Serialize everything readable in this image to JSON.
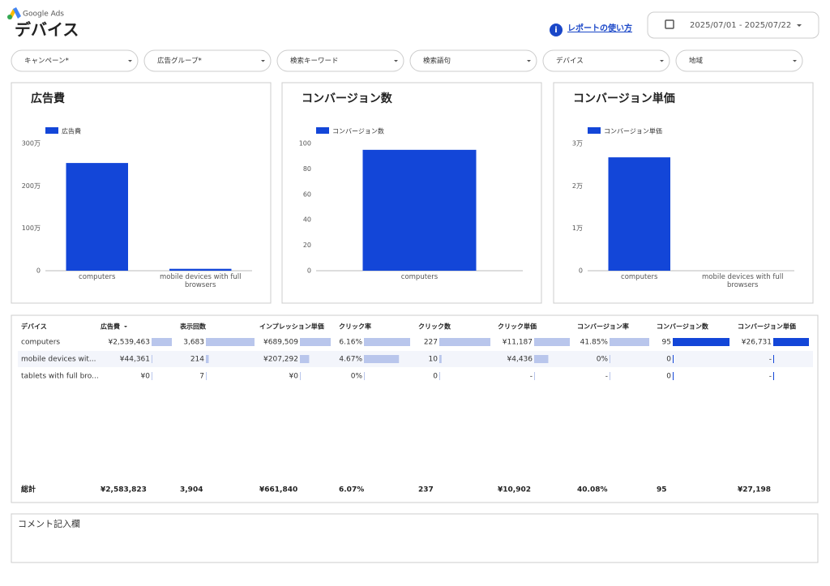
{
  "header": {
    "brand": "Google Ads",
    "title": "デバイス",
    "help_link": "レポートの使い方",
    "date_range": "2025/07/01 - 2025/07/22"
  },
  "filters": [
    "キャンペーン*",
    "広告グループ*",
    "検索キーワード",
    "検索語句",
    "デバイス",
    "地域"
  ],
  "chart_data": [
    {
      "type": "bar",
      "title": "広告費",
      "categories": [
        "computers",
        "mobile devices with full browsers"
      ],
      "series": [
        {
          "name": "広告費",
          "color": "#1346d8",
          "values": [
            2539463,
            44361
          ]
        }
      ],
      "ylim": [
        0,
        3000000
      ],
      "yticks": [
        0,
        {
          "value": 1000000,
          "label": "100万"
        },
        {
          "value": 2000000,
          "label": "200万"
        },
        {
          "value": 3000000,
          "label": "300万"
        }
      ],
      "grid": false
    },
    {
      "type": "bar",
      "title": "コンバージョン数",
      "categories": [
        "computers"
      ],
      "series": [
        {
          "name": "コンバージョン数",
          "color": "#1346d8",
          "values": [
            95
          ]
        }
      ],
      "ylim": [
        0,
        100
      ],
      "yticks": [
        0,
        20,
        40,
        60,
        80,
        100
      ],
      "grid": false
    },
    {
      "type": "bar",
      "title": "コンバージョン単価",
      "categories": [
        "computers",
        "mobile devices with full browsers"
      ],
      "series": [
        {
          "name": "コンバージョン単価",
          "color": "#1346d8",
          "values": [
            26731,
            null
          ]
        }
      ],
      "ylim": [
        0,
        30000
      ],
      "yticks": [
        0,
        {
          "value": 10000,
          "label": "1万"
        },
        {
          "value": 20000,
          "label": "2万"
        },
        {
          "value": 30000,
          "label": "3万"
        }
      ],
      "grid": false
    }
  ],
  "table": {
    "columns": [
      "デバイス",
      "広告費",
      "表示回数",
      "インプレッション単価",
      "クリック率",
      "クリック数",
      "クリック単価",
      "コンバージョン率",
      "コンバージョン数",
      "コンバージョン単価"
    ],
    "bar_colors": [
      "#b9c6ec",
      "#b9c6ec",
      "#b9c6ec",
      "#b9c6ec",
      "#b9c6ec",
      "#b9c6ec",
      "#b9c6ec",
      "#1346d8",
      "#1346d8"
    ],
    "rows": [
      {
        "device": "computers",
        "values": [
          2539463,
          3683,
          689509,
          6.16,
          227,
          11187,
          41.85,
          95,
          26731
        ],
        "value_labels": [
          "¥2,539,463",
          "3,683",
          "¥689,509",
          "6.16%",
          "227",
          "¥11,187",
          "41.85%",
          "95",
          "¥26,731"
        ]
      },
      {
        "device": "mobile devices wit...",
        "values": [
          44361,
          214,
          207292,
          4.67,
          10,
          4436,
          0,
          0,
          null
        ],
        "value_labels": [
          "¥44,361",
          "214",
          "¥207,292",
          "4.67%",
          "10",
          "¥4,436",
          "0%",
          "0",
          "-"
        ]
      },
      {
        "device": "tablets with full bro...",
        "values": [
          0,
          7,
          0,
          0,
          0,
          null,
          null,
          0,
          null
        ],
        "value_labels": [
          "¥0",
          "7",
          "¥0",
          "0%",
          "0",
          "-",
          "-",
          "0",
          "-"
        ]
      }
    ],
    "total": [
      "総計",
      "¥2,583,823",
      "3,904",
      "¥661,840",
      "6.07%",
      "237",
      "¥10,902",
      "40.08%",
      "95",
      "¥27,198"
    ]
  },
  "comment": {
    "label": "コメント記入欄"
  }
}
